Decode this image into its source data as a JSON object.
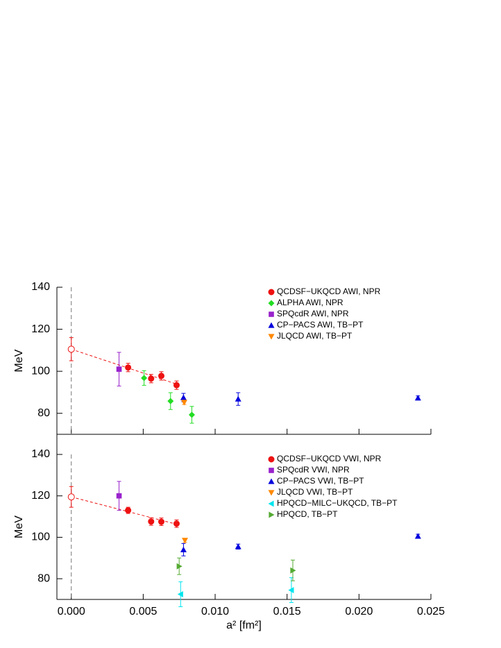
{
  "chart_data": [
    {
      "type": "scatter",
      "y_label": "MeV",
      "xlim": [
        -0.001,
        0.025
      ],
      "ylim": [
        70,
        140
      ],
      "xticks": [
        0,
        0.005,
        0.01,
        0.015,
        0.02,
        0.025
      ],
      "yticks": [
        80,
        100,
        120,
        140
      ],
      "extrapolation": {
        "x": 0,
        "value": 110.5,
        "error": 5.5,
        "color": "#ee1111"
      },
      "fit": {
        "x": [
          0,
          0.0075
        ],
        "values": [
          110.5,
          93.5
        ],
        "color": "#ee1111"
      },
      "series": [
        {
          "name": "QCDSF−UKQCD AWI, NPR",
          "color": "#ee1111",
          "marker": "circle",
          "x": [
            0.00395,
            0.00555,
            0.00626,
            0.00732
          ],
          "values": [
            101.8,
            96.5,
            97.8,
            93.4
          ],
          "errors": [
            2,
            2,
            2,
            2
          ]
        },
        {
          "name": "ALPHA AWI, NPR",
          "color": "#22dd22",
          "marker": "diamond",
          "x": [
            0.00506,
            0.0069,
            0.00838
          ],
          "values": [
            96.8,
            85.8,
            79.3
          ],
          "errors": [
            3.5,
            4,
            4
          ]
        },
        {
          "name": "SPQcdR AWI, NPR",
          "color": "#9922cc",
          "marker": "square",
          "x": [
            0.00332
          ],
          "values": [
            101
          ],
          "errors": [
            8
          ]
        },
        {
          "name": "CP−PACS AWI, TB−PT",
          "color": "#0000dd",
          "marker": "triangle-up",
          "x": [
            0.0078,
            0.0116,
            0.0241
          ],
          "values": [
            87.5,
            86.8,
            87.3
          ],
          "errors": [
            2,
            3,
            1
          ]
        },
        {
          "name": "JLQCD AWI, TB−PT",
          "color": "#ff8800",
          "marker": "triangle-down",
          "x": [
            0.00785
          ],
          "values": [
            85.2
          ],
          "errors": [
            1
          ]
        }
      ]
    },
    {
      "type": "scatter",
      "y_label": "MeV",
      "x_label": "a² [fm²]",
      "xlim": [
        -0.001,
        0.025
      ],
      "ylim": [
        70,
        140
      ],
      "xticks": [
        {
          "value": 0,
          "label": "0.000"
        },
        0.005,
        {
          "value": 0.01,
          "label": "0.010"
        },
        0.015,
        {
          "value": 0.02,
          "label": "0.020"
        },
        0.025
      ],
      "yticks": [
        80,
        100,
        120,
        140
      ],
      "extrapolation": {
        "x": 0,
        "value": 119.5,
        "error": 5,
        "color": "#ee1111"
      },
      "fit": {
        "x": [
          0,
          0.0075
        ],
        "values": [
          119.5,
          106
        ],
        "color": "#ee1111"
      },
      "series": [
        {
          "name": "QCDSF−UKQCD VWI, NPR",
          "color": "#ee1111",
          "marker": "circle",
          "x": [
            0.00395,
            0.00555,
            0.00626,
            0.00732
          ],
          "values": [
            113,
            107.6,
            107.5,
            106.6
          ],
          "errors": [
            1.5,
            1.8,
            1.8,
            1.8
          ]
        },
        {
          "name": "SPQcdR VWI, NPR",
          "color": "#9922cc",
          "marker": "square",
          "x": [
            0.00332
          ],
          "values": [
            120
          ],
          "errors": [
            7
          ]
        },
        {
          "name": "CP−PACS VWI, TB−PT",
          "color": "#0000dd",
          "marker": "triangle-up",
          "x": [
            0.0078,
            0.0116,
            0.0241
          ],
          "values": [
            94,
            95.5,
            100.5
          ],
          "errors": [
            3,
            1.2,
            1
          ]
        },
        {
          "name": "JLQCD VWI, TB−PT",
          "color": "#ff8800",
          "marker": "triangle-down",
          "x": [
            0.0079
          ],
          "values": [
            98.5
          ],
          "errors": [
            1
          ]
        },
        {
          "name": "HPQCD−MILC−UKQCD, TB−PT",
          "color": "#00e5ee",
          "marker": "triangle-left",
          "x": [
            0.0076,
            0.0153
          ],
          "values": [
            72.5,
            74.5
          ],
          "errors": [
            6,
            6
          ]
        },
        {
          "name": "HPQCD, TB−PT",
          "color": "#55aa33",
          "marker": "triangle-right",
          "x": [
            0.0075,
            0.0154
          ],
          "values": [
            86,
            84
          ],
          "errors": [
            4,
            5
          ]
        }
      ]
    }
  ]
}
